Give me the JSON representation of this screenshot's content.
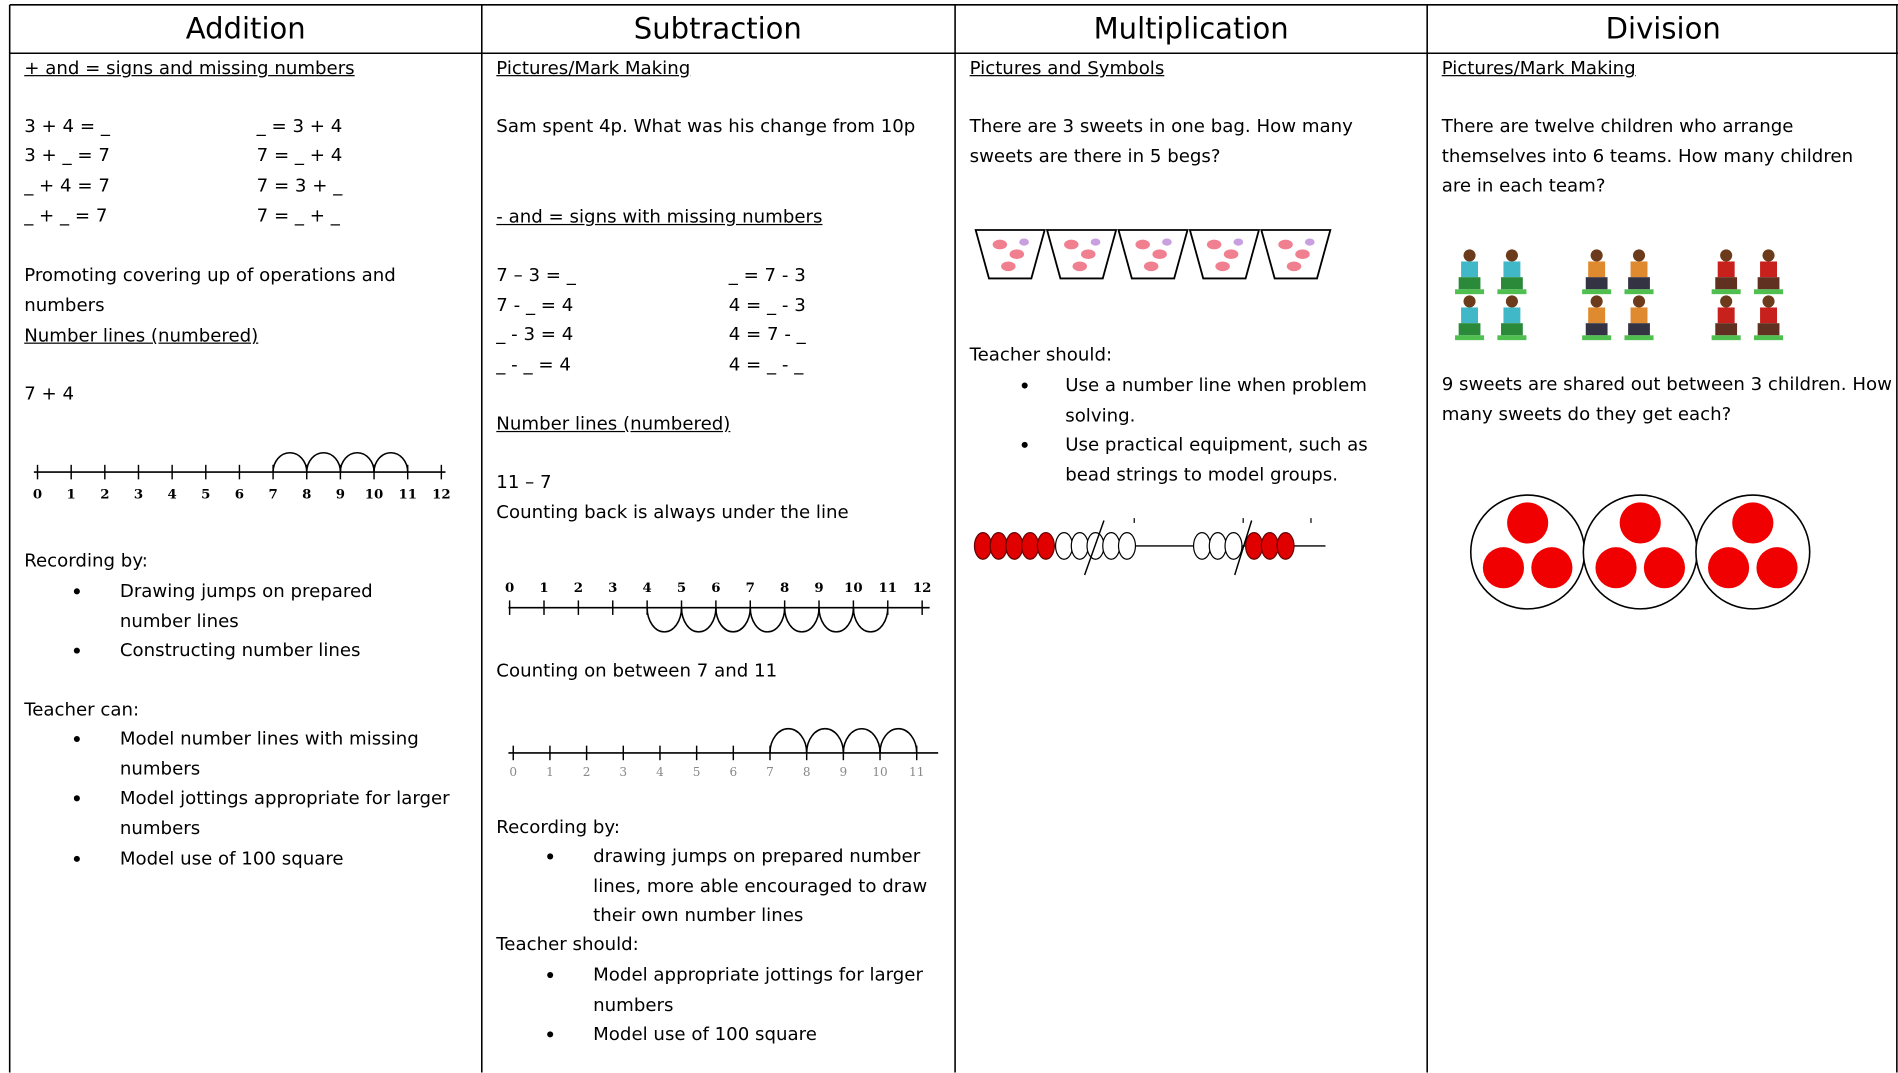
{
  "header": [
    "Addition",
    "Subtraction",
    "Multiplication",
    "Division"
  ],
  "addition": {
    "heading1": "+ and = signs and missing numbers",
    "equations": [
      [
        "3 + 4 = _",
        "_ = 3 + 4"
      ],
      [
        "3 + _ = 7",
        "7 = _ + 4"
      ],
      [
        "_ + 4 = 7",
        "7 = 3 + _"
      ],
      [
        "_ + _ = 7",
        "7 = _ + _"
      ]
    ],
    "text1": "Promoting covering up of operations and numbers",
    "heading2": "Number lines (numbered)",
    "example": "7 + 4",
    "number_line": [
      0,
      1,
      2,
      3,
      4,
      5,
      6,
      7,
      8,
      9,
      10,
      11,
      12
    ],
    "recording_label": "Recording by:",
    "recording": [
      "Drawing jumps on prepared number lines",
      "Constructing number lines"
    ],
    "teacher_label": "Teacher can:",
    "teacher": [
      "Model number lines with missing numbers",
      "Model jottings appropriate for larger numbers",
      "Model use of 100 square"
    ]
  },
  "subtraction": {
    "heading1": "Pictures/Mark Making",
    "text1": "Sam spent 4p.  What was his change from 10p",
    "heading2": "- and = signs with missing numbers",
    "equations": [
      [
        "7 – 3  = _",
        "_ = 7 - 3"
      ],
      [
        "7 -  _ = 4",
        "4 = _ - 3"
      ],
      [
        "_ - 3 = 4",
        "4 = 7 - _"
      ],
      [
        "_ - _ = 4",
        "4 = _ - _"
      ]
    ],
    "heading3": "Number lines (numbered)",
    "example": "11 – 7",
    "text2": "Counting back is always under the line",
    "number_line1": [
      0,
      1,
      2,
      3,
      4,
      5,
      6,
      7,
      8,
      9,
      10,
      11,
      12
    ],
    "text3": "Counting on between 7 and 11",
    "number_line2": [
      0,
      1,
      2,
      3,
      4,
      5,
      6,
      7,
      8,
      9,
      10,
      11
    ],
    "recording_label": "Recording by:",
    "recording": [
      "drawing jumps on prepared number lines, more able encouraged to draw their own number lines"
    ],
    "teacher_label": "Teacher should:",
    "teacher": [
      "Model appropriate jottings for larger numbers",
      "Model use of 100 square"
    ]
  },
  "multiplication": {
    "heading1": "Pictures and Symbols",
    "text1": "There are 3 sweets in one bag.  How many sweets are there in 5 begs?",
    "teacher_label": "Teacher should:",
    "teacher": [
      "Use a number line when problem solving.",
      "Use practical equipment, such as bead strings to model groups."
    ]
  },
  "division": {
    "heading1": "Pictures/Mark Making",
    "text1": "There are twelve children who arrange themselves into 6 teams.  How many children are in each team?",
    "text2": "9 sweets are shared out between 3 children.  How many sweets do they get each?"
  }
}
